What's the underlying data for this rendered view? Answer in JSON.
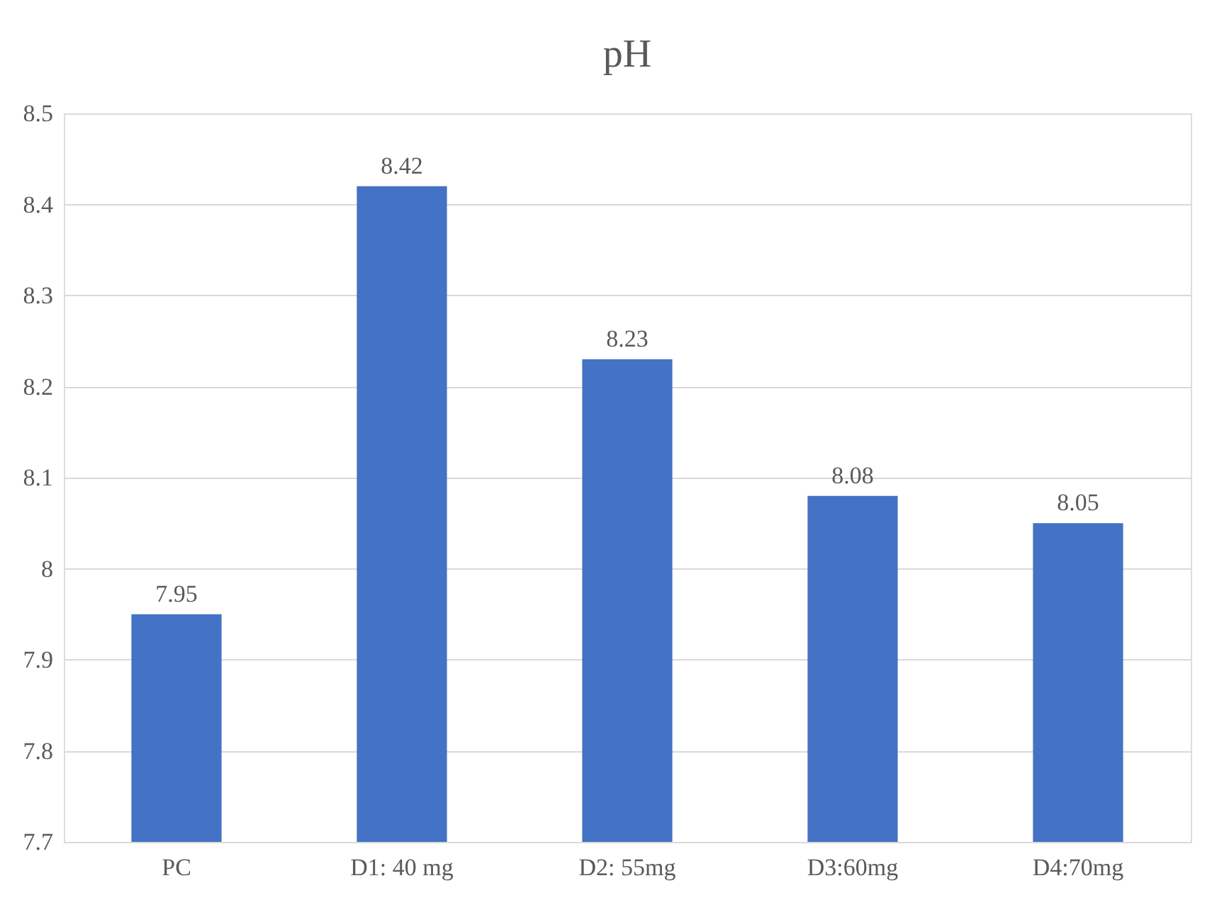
{
  "chart_data": {
    "type": "bar",
    "title": "pH",
    "categories": [
      "PC",
      "D1: 40 mg",
      "D2: 55mg",
      "D3:60mg",
      "D4:70mg"
    ],
    "values": [
      7.95,
      8.42,
      8.23,
      8.08,
      8.05
    ],
    "color": "#4472c4",
    "ylim": [
      7.7,
      8.5
    ],
    "yticks": [
      7.7,
      7.8,
      7.9,
      8,
      8.1,
      8.2,
      8.3,
      8.4,
      8.5
    ],
    "grid": "y",
    "data_labels": true
  }
}
